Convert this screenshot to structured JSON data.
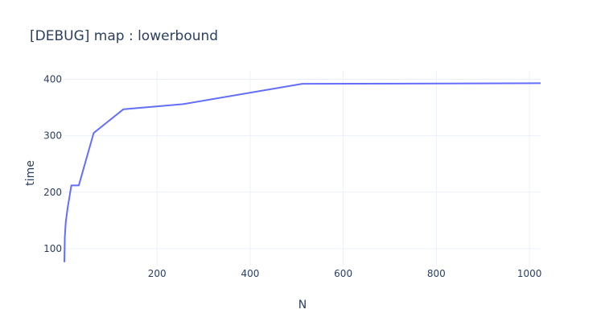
{
  "chart_data": {
    "type": "line",
    "title": "[DEBUG] map : lowerbound",
    "xlabel": "N",
    "ylabel": "time",
    "xlim": [
      1,
      1024
    ],
    "ylim": [
      70,
      415
    ],
    "x_ticks": [
      200,
      400,
      600,
      800,
      1000
    ],
    "y_ticks": [
      100,
      200,
      300,
      400
    ],
    "grid": true,
    "line_color": "#636efa",
    "series": [
      {
        "name": "lowerbound",
        "x": [
          1,
          2,
          4,
          8,
          16,
          32,
          64,
          128,
          256,
          512,
          1024
        ],
        "y": [
          76,
          121,
          147,
          172,
          212,
          212,
          305,
          347,
          356,
          392,
          393
        ]
      }
    ]
  }
}
